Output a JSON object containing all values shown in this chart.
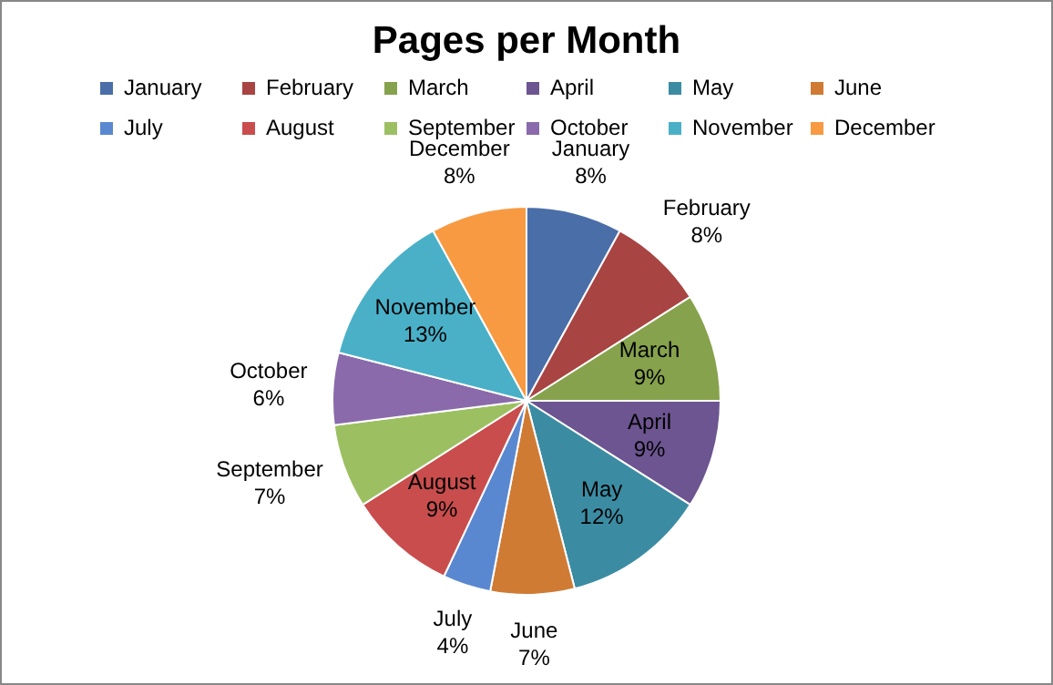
{
  "chart_data": {
    "type": "pie",
    "title": "Pages per Month",
    "categories": [
      "January",
      "February",
      "March",
      "April",
      "May",
      "June",
      "July",
      "August",
      "September",
      "October",
      "November",
      "December"
    ],
    "values": [
      8,
      8,
      9,
      9,
      12,
      7,
      4,
      9,
      7,
      6,
      13,
      8
    ],
    "value_labels": [
      "8%",
      "8%",
      "9%",
      "9%",
      "12%",
      "7%",
      "4%",
      "9%",
      "7%",
      "6%",
      "13%",
      "8%"
    ],
    "colors": [
      "#4a6ea8",
      "#a84442",
      "#86a24c",
      "#6c5590",
      "#3b8ca3",
      "#d07b34",
      "#5a88d0",
      "#c94d4d",
      "#9cc061",
      "#8a6aaa",
      "#4ab0c8",
      "#f79a42"
    ],
    "legend": "top"
  }
}
